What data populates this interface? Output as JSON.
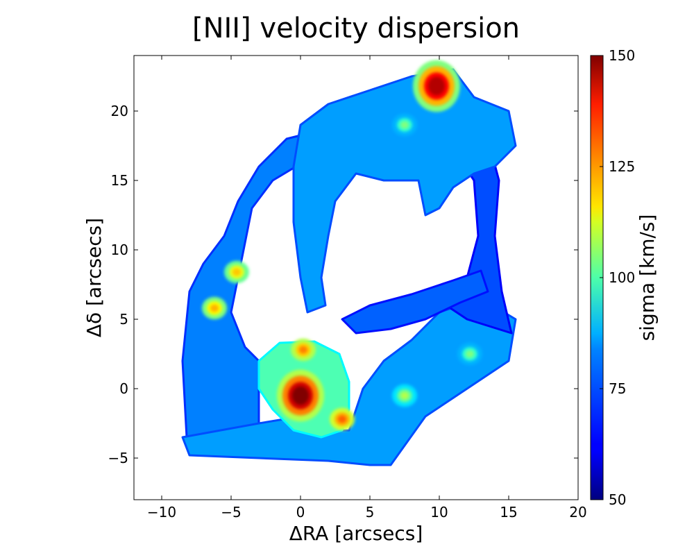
{
  "chart_data": {
    "type": "heatmap",
    "title": "[NII] velocity dispersion",
    "xlabel": "ΔRA [arcsecs]",
    "ylabel": "Δδ [arcsecs]",
    "xlim": [
      -12,
      20
    ],
    "ylim": [
      -8,
      24
    ],
    "xticks": [
      -10,
      -5,
      0,
      5,
      10,
      15,
      20
    ],
    "xtick_labels": [
      "−10",
      "−5",
      "0",
      "5",
      "10",
      "15",
      "20"
    ],
    "yticks": [
      -5,
      0,
      5,
      10,
      15,
      20
    ],
    "ytick_labels": [
      "−5",
      "0",
      "5",
      "10",
      "15",
      "20"
    ],
    "colorbar": {
      "label": "sigma [km/s]",
      "min": 50,
      "max": 150,
      "ticks": [
        50,
        75,
        100,
        125,
        150
      ],
      "tick_labels": [
        "50",
        "75",
        "100",
        "125",
        "150"
      ],
      "colormap": "jet"
    },
    "regions": [
      {
        "name": "ring-left-arc",
        "sigma": 75,
        "outline": [
          [
            -8.2,
            -3.5
          ],
          [
            -8.5,
            2
          ],
          [
            -8,
            7
          ],
          [
            -7,
            9
          ],
          [
            -5.5,
            11
          ],
          [
            -4.5,
            13.5
          ],
          [
            -3,
            16
          ],
          [
            -1,
            18
          ],
          [
            1,
            18.5
          ],
          [
            0.5,
            16.5
          ],
          [
            -2,
            15
          ],
          [
            -3.5,
            13
          ],
          [
            -4,
            10.5
          ],
          [
            -4.5,
            8
          ],
          [
            -5,
            5.5
          ],
          [
            -4,
            3
          ],
          [
            -3,
            2
          ],
          [
            -3,
            -3
          ]
        ]
      },
      {
        "name": "ring-bottom-band",
        "sigma": 78,
        "outline": [
          [
            -8.5,
            -3.5
          ],
          [
            -8,
            -4.8
          ],
          [
            -3,
            -5
          ],
          [
            2,
            -5.2
          ],
          [
            5,
            -5.5
          ],
          [
            6.5,
            -5.5
          ],
          [
            9,
            -2
          ],
          [
            12,
            0
          ],
          [
            15,
            2
          ],
          [
            15.5,
            5
          ],
          [
            13,
            6.5
          ],
          [
            10,
            5.5
          ],
          [
            8,
            3.5
          ],
          [
            6,
            2
          ],
          [
            4.5,
            0
          ],
          [
            3.5,
            -3
          ],
          [
            2,
            -3
          ],
          [
            0,
            -2
          ],
          [
            -3,
            -2.5
          ]
        ]
      },
      {
        "name": "ring-right-arc",
        "sigma": 70,
        "outline": [
          [
            15.2,
            4
          ],
          [
            14.5,
            7
          ],
          [
            14,
            11
          ],
          [
            14.3,
            15
          ],
          [
            13.5,
            18
          ],
          [
            12,
            20
          ],
          [
            11,
            21
          ],
          [
            10.5,
            18
          ],
          [
            12.5,
            15
          ],
          [
            12.8,
            11
          ],
          [
            12,
            8
          ],
          [
            10.5,
            6
          ],
          [
            12,
            5
          ]
        ]
      },
      {
        "name": "top-plume",
        "sigma": 78,
        "outline": [
          [
            0,
            19
          ],
          [
            2,
            20.5
          ],
          [
            5,
            21.5
          ],
          [
            8,
            22.5
          ],
          [
            11,
            23
          ],
          [
            12.5,
            21
          ],
          [
            15,
            20
          ],
          [
            15.5,
            17.5
          ],
          [
            14,
            16
          ],
          [
            12.5,
            15.5
          ],
          [
            11,
            14.5
          ],
          [
            10,
            13
          ],
          [
            9,
            12.5
          ],
          [
            8.5,
            15
          ],
          [
            6,
            15
          ],
          [
            4,
            15.5
          ],
          [
            2.5,
            13.5
          ],
          [
            2,
            11
          ],
          [
            1.5,
            8
          ],
          [
            1.8,
            6
          ],
          [
            0.5,
            5.5
          ],
          [
            0,
            8
          ],
          [
            -0.5,
            12
          ],
          [
            -0.5,
            16
          ]
        ]
      },
      {
        "name": "middle-filament",
        "sigma": 72,
        "outline": [
          [
            3,
            5
          ],
          [
            5,
            6
          ],
          [
            8,
            6.8
          ],
          [
            11,
            7.8
          ],
          [
            13,
            8.5
          ],
          [
            13.5,
            7
          ],
          [
            11.5,
            6.2
          ],
          [
            9,
            5
          ],
          [
            6.5,
            4.3
          ],
          [
            4,
            4
          ]
        ]
      },
      {
        "name": "central-bubble",
        "sigma": 95,
        "outline": [
          [
            -3,
            2
          ],
          [
            -1.5,
            3.3
          ],
          [
            1,
            3.4
          ],
          [
            2.8,
            2.5
          ],
          [
            3.5,
            0.5
          ],
          [
            3.5,
            -1.5
          ],
          [
            3,
            -3
          ],
          [
            1.5,
            -3.5
          ],
          [
            -0.5,
            -3
          ],
          [
            -2,
            -1.5
          ],
          [
            -3,
            0
          ]
        ]
      }
    ],
    "hotspots": [
      {
        "name": "nucleus",
        "x": 0,
        "y": -0.5,
        "sigma": 150
      },
      {
        "name": "north-knot",
        "x": 9.8,
        "y": 21.8,
        "sigma": 145
      },
      {
        "name": "bubble-rim-se",
        "x": 3,
        "y": -2.2,
        "sigma": 128
      },
      {
        "name": "left-arc-knot",
        "x": -6.2,
        "y": 5.8,
        "sigma": 120
      },
      {
        "name": "left-arc-knot-2",
        "x": -4.6,
        "y": 8.4,
        "sigma": 118
      },
      {
        "name": "bubble-rim-top",
        "x": 0.2,
        "y": 2.8,
        "sigma": 125
      },
      {
        "name": "bottom-band-knot",
        "x": 7.5,
        "y": -0.5,
        "sigma": 105
      },
      {
        "name": "top-plume-knot",
        "x": 7.5,
        "y": 19,
        "sigma": 100
      },
      {
        "name": "right-arc-knot",
        "x": 12.2,
        "y": 2.5,
        "sigma": 100
      }
    ]
  }
}
